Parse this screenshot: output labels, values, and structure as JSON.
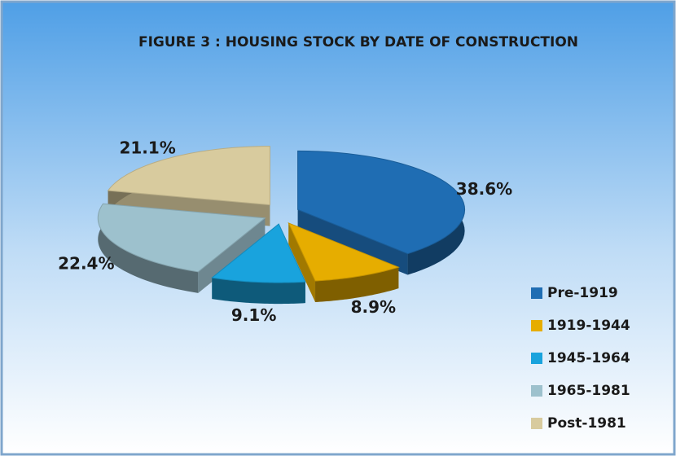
{
  "chart_data": {
    "type": "pie3d",
    "title": "FIGURE 3 : HOUSING STOCK BY DATE OF CONSTRUCTION",
    "categories": [
      "Pre-1919",
      "1919-1944",
      "1945-1964",
      "1965-1981",
      "Post-1981"
    ],
    "values": [
      38.6,
      8.9,
      9.1,
      22.4,
      21.1
    ],
    "value_labels": [
      "38.6%",
      "8.9%",
      "9.1%",
      "22.4%",
      "21.1%"
    ],
    "colors": [
      "#1f6db3",
      "#e6ad00",
      "#19a3dd",
      "#9dc1cd",
      "#d8cb9e"
    ],
    "legend": "bottom-right"
  }
}
